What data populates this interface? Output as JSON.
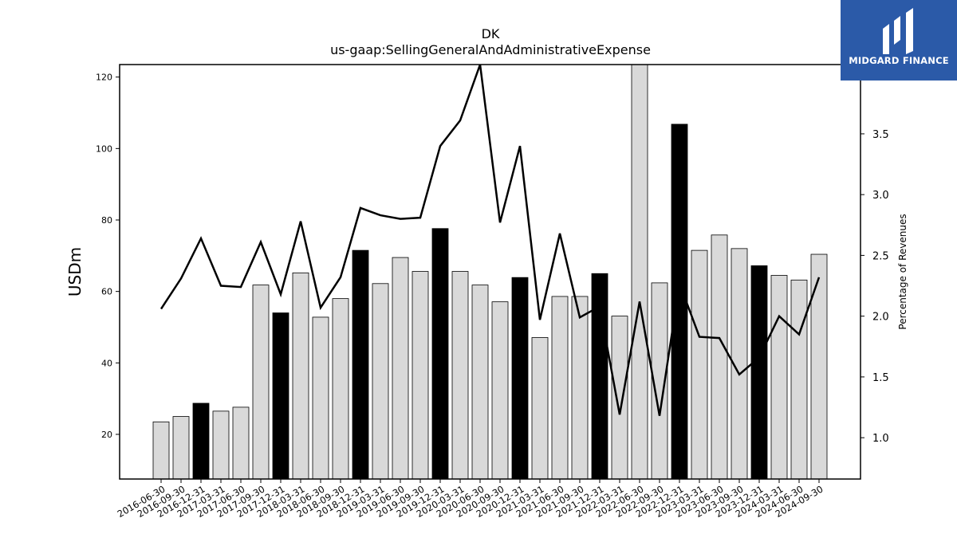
{
  "chart_data": {
    "type": "bar",
    "title": "DK",
    "subtitle": "us-gaap:SellingGeneralAndAdministrativeExpense",
    "ylabel": "USDm",
    "ylabel_right": "Percentage of Revenues",
    "ylim": [
      7.5,
      123.5
    ],
    "ylim_right": [
      0.66,
      4.07
    ],
    "yticks": [
      20,
      40,
      60,
      80,
      100,
      120
    ],
    "yticks_right": [
      1.0,
      1.5,
      2.0,
      2.5,
      3.0,
      3.5
    ],
    "categories": [
      "2016-06-30",
      "2016-09-30",
      "2016-12-31",
      "2017-03-31",
      "2017-06-30",
      "2017-09-30",
      "2017-12-31",
      "2018-03-31",
      "2018-06-30",
      "2018-09-30",
      "2018-12-31",
      "2019-03-31",
      "2019-06-30",
      "2019-09-30",
      "2019-12-31",
      "2020-03-31",
      "2020-06-30",
      "2020-09-30",
      "2020-12-31",
      "2021-03-31",
      "2021-06-30",
      "2021-09-30",
      "2021-12-31",
      "2022-03-31",
      "2022-06-30",
      "2022-09-30",
      "2022-12-31",
      "2023-03-31",
      "2023-06-30",
      "2023-09-30",
      "2023-12-31",
      "2024-03-31",
      "2024-06-30",
      "2024-09-30"
    ],
    "series": [
      {
        "type": "bar",
        "values": [
          23.5,
          25.0,
          28.7,
          26.5,
          27.6,
          61.8,
          54.0,
          65.2,
          52.8,
          58.0,
          71.5,
          62.2,
          69.5,
          65.6,
          77.6,
          65.6,
          61.8,
          57.1,
          63.9,
          47.1,
          58.6,
          58.6,
          65.0,
          53.1,
          123.5,
          62.4,
          106.8,
          71.5,
          75.8,
          72.0,
          67.2,
          64.5,
          63.2,
          70.4
        ],
        "highlight_color": "#000000",
        "color": "#d9d9d9"
      },
      {
        "type": "line",
        "axis": "right",
        "values": [
          2.06,
          2.31,
          2.64,
          2.25,
          2.24,
          2.61,
          2.18,
          2.78,
          2.07,
          2.32,
          2.89,
          2.83,
          2.8,
          2.81,
          3.4,
          3.61,
          4.07,
          2.77,
          3.4,
          1.97,
          2.68,
          1.99,
          2.08,
          1.19,
          2.12,
          1.18,
          2.27,
          1.83,
          1.82,
          1.52,
          1.66,
          2.0,
          1.85,
          2.32
        ],
        "color": "#000000"
      }
    ],
    "highlighted_indices": [
      2,
      6,
      10,
      14,
      18,
      22,
      26,
      30
    ],
    "grid": false,
    "legend": "none"
  },
  "brand": {
    "name": "MIDGARD FINANCE",
    "logo_icon": "midgard-logo-icon",
    "color": "#2b5aa8"
  }
}
